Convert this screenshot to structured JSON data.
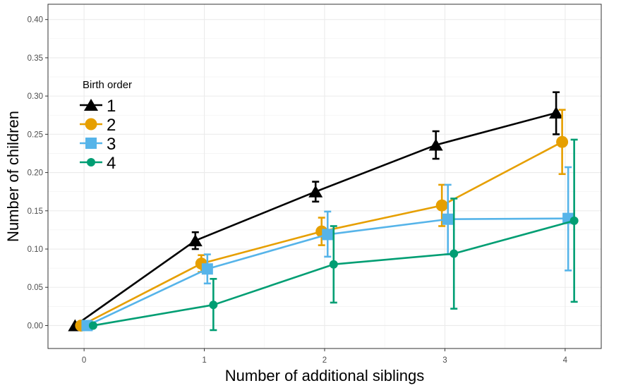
{
  "chart_data": {
    "type": "line",
    "xlabel": "Number of additional siblings",
    "ylabel": "Number of children",
    "x": [
      0,
      1,
      2,
      3,
      4
    ],
    "xlim": [
      -0.3,
      4.3
    ],
    "ylim": [
      -0.03,
      0.42
    ],
    "x_ticks": [
      "0",
      "1",
      "2",
      "3",
      "4"
    ],
    "y_ticks": [
      "0.00",
      "0.05",
      "0.10",
      "0.15",
      "0.20",
      "0.25",
      "0.30",
      "0.35",
      "0.40"
    ],
    "grid": true,
    "legend": {
      "title": "Birth order",
      "position": "left"
    },
    "series": [
      {
        "name": "1",
        "color": "#000000",
        "marker": "triangle",
        "values": [
          0.0,
          0.111,
          0.175,
          0.236,
          0.278
        ],
        "lower": [
          null,
          0.1,
          0.162,
          0.218,
          0.25
        ],
        "upper": [
          null,
          0.122,
          0.188,
          0.254,
          0.305
        ]
      },
      {
        "name": "2",
        "color": "#E69F00",
        "marker": "circle",
        "values": [
          0.0,
          0.081,
          0.123,
          0.157,
          0.24
        ],
        "lower": [
          null,
          0.07,
          0.105,
          0.13,
          0.198
        ],
        "upper": [
          null,
          0.092,
          0.141,
          0.184,
          0.282
        ]
      },
      {
        "name": "3",
        "color": "#56B4E9",
        "marker": "square",
        "values": [
          0.0,
          0.074,
          0.119,
          0.139,
          0.14
        ],
        "lower": [
          null,
          0.055,
          0.09,
          0.093,
          0.072
        ],
        "upper": [
          null,
          0.093,
          0.149,
          0.184,
          0.207
        ]
      },
      {
        "name": "4",
        "color": "#009E73",
        "marker": "circle-small",
        "values": [
          0.0,
          0.027,
          0.08,
          0.094,
          0.137
        ],
        "lower": [
          null,
          -0.006,
          0.03,
          0.022,
          0.031
        ],
        "upper": [
          null,
          0.061,
          0.13,
          0.166,
          0.243
        ]
      }
    ]
  }
}
